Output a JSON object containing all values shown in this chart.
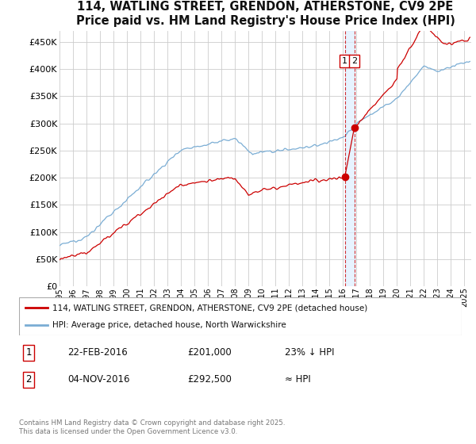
{
  "title": "114, WATLING STREET, GRENDON, ATHERSTONE, CV9 2PE",
  "subtitle": "Price paid vs. HM Land Registry's House Price Index (HPI)",
  "ylabel_ticks": [
    "£0",
    "£50K",
    "£100K",
    "£150K",
    "£200K",
    "£250K",
    "£300K",
    "£350K",
    "£400K",
    "£450K"
  ],
  "ytick_values": [
    0,
    50000,
    100000,
    150000,
    200000,
    250000,
    300000,
    350000,
    400000,
    450000
  ],
  "ylim": [
    0,
    470000
  ],
  "xlim_start": 1995.0,
  "xlim_end": 2025.5,
  "xticks": [
    1995,
    1996,
    1997,
    1998,
    1999,
    2000,
    2001,
    2002,
    2003,
    2004,
    2005,
    2006,
    2007,
    2008,
    2009,
    2010,
    2011,
    2012,
    2013,
    2014,
    2015,
    2016,
    2017,
    2018,
    2019,
    2020,
    2021,
    2022,
    2023,
    2024,
    2025
  ],
  "transaction1_date": 2016.13,
  "transaction1_price": 201000,
  "transaction2_date": 2016.84,
  "transaction2_price": 292500,
  "vline_x1": 2016.13,
  "vline_x2": 2016.84,
  "legend_line1": "114, WATLING STREET, GRENDON, ATHERSTONE, CV9 2PE (detached house)",
  "legend_line2": "HPI: Average price, detached house, North Warwickshire",
  "table_row1_num": "1",
  "table_row1_date": "22-FEB-2016",
  "table_row1_price": "£201,000",
  "table_row1_hpi": "23% ↓ HPI",
  "table_row2_num": "2",
  "table_row2_date": "04-NOV-2016",
  "table_row2_price": "£292,500",
  "table_row2_hpi": "≈ HPI",
  "footer": "Contains HM Land Registry data © Crown copyright and database right 2025.\nThis data is licensed under the Open Government Licence v3.0.",
  "line_color_property": "#cc0000",
  "line_color_hpi": "#7aadd4",
  "background_color": "#ffffff",
  "grid_color": "#cccccc",
  "title_fontsize": 10.5,
  "vband_color": "#ddeeff"
}
